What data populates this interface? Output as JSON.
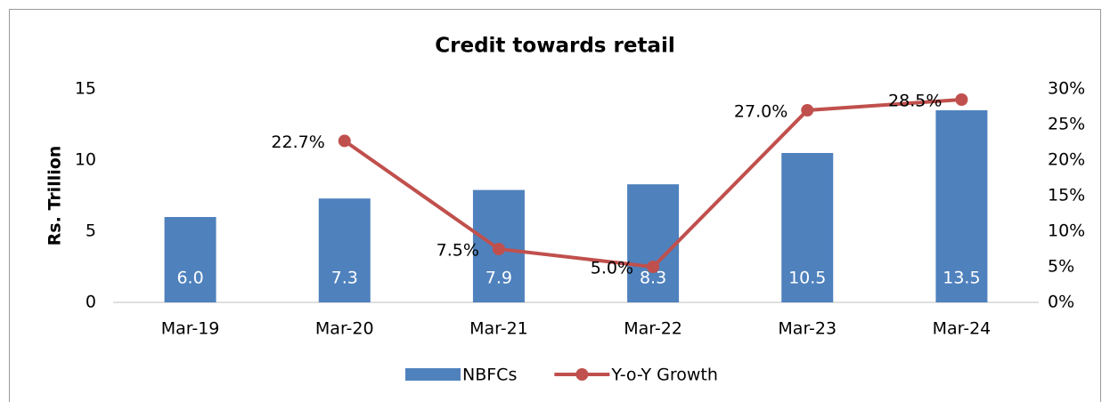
{
  "chart_data": {
    "type": "combo",
    "title": "Credit towards retail",
    "y_label": "Rs. Trillion",
    "categories": [
      "Mar-19",
      "Mar-20",
      "Mar-21",
      "Mar-22",
      "Mar-23",
      "Mar-24"
    ],
    "series": [
      {
        "name": "NBFCs",
        "type": "bar",
        "color": "#4f81bd",
        "axis": "y",
        "values": [
          6.0,
          7.3,
          7.9,
          8.3,
          10.5,
          13.5
        ],
        "value_labels": [
          "6.0",
          "7.3",
          "7.9",
          "8.3",
          "10.5",
          "13.5"
        ]
      },
      {
        "name": "Y-o-Y Growth",
        "type": "line",
        "color": "#c0504d",
        "axis": "y2",
        "values": [
          null,
          22.7,
          7.5,
          5.0,
          27.0,
          28.5
        ],
        "value_labels": [
          null,
          "22.7%",
          "7.5%",
          "5.0%",
          "27.0%",
          "28.5%"
        ]
      }
    ],
    "ylim": [
      0,
      15
    ],
    "yticks": [
      0,
      5,
      10,
      15
    ],
    "y2lim": [
      0,
      30
    ],
    "y2ticks": [
      {
        "value": 0,
        "label": "0%"
      },
      {
        "value": 5,
        "label": "5%"
      },
      {
        "value": 10,
        "label": "10%"
      },
      {
        "value": 15,
        "label": "15%"
      },
      {
        "value": 20,
        "label": "20%"
      },
      {
        "value": 25,
        "label": "25%"
      },
      {
        "value": 30,
        "label": "30%"
      }
    ],
    "grid": false,
    "legend": "bottom"
  }
}
